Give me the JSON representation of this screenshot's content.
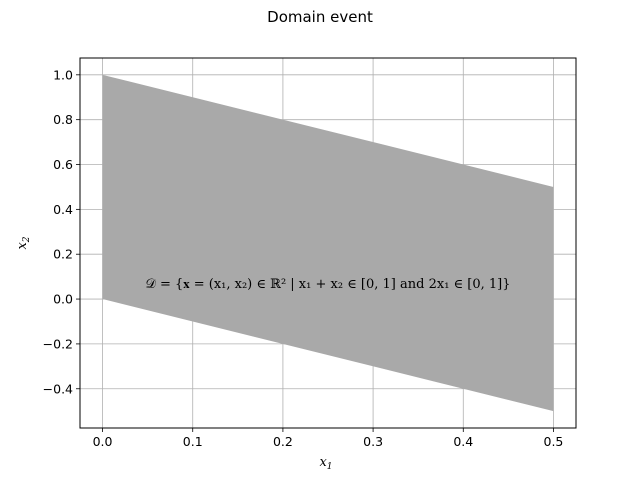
{
  "chart_data": {
    "type": "area",
    "title": "Domain event",
    "xlabel_main": "x",
    "xlabel_sub": "1",
    "ylabel_main": "x",
    "ylabel_sub": "2",
    "xlim": [
      -0.025,
      0.525
    ],
    "ylim": [
      -0.575,
      1.075
    ],
    "xticks": [
      0.0,
      0.1,
      0.2,
      0.3,
      0.4,
      0.5
    ],
    "xtick_labels": [
      "0.0",
      "0.1",
      "0.2",
      "0.3",
      "0.4",
      "0.5"
    ],
    "yticks": [
      -0.4,
      -0.2,
      0.0,
      0.2,
      0.4,
      0.6,
      0.8,
      1.0
    ],
    "ytick_labels": [
      "−0.4",
      "−0.2",
      "0.0",
      "0.2",
      "0.4",
      "0.6",
      "0.8",
      "1.0"
    ],
    "grid": true,
    "fill_color": "#a9a9a9",
    "grid_color": "#b0b0b0",
    "polygon": [
      [
        0.0,
        0.0
      ],
      [
        0.5,
        -0.5
      ],
      [
        0.5,
        0.5
      ],
      [
        0.0,
        1.0
      ]
    ],
    "annotation": {
      "text": "𝒟 = {𝐱 = (x₁, x₂) ∈ ℝ² | x₁ + x₂ ∈ [0, 1] and 2x₁ ∈ [0, 1]}",
      "x": 0.25,
      "y": 0.05
    }
  }
}
